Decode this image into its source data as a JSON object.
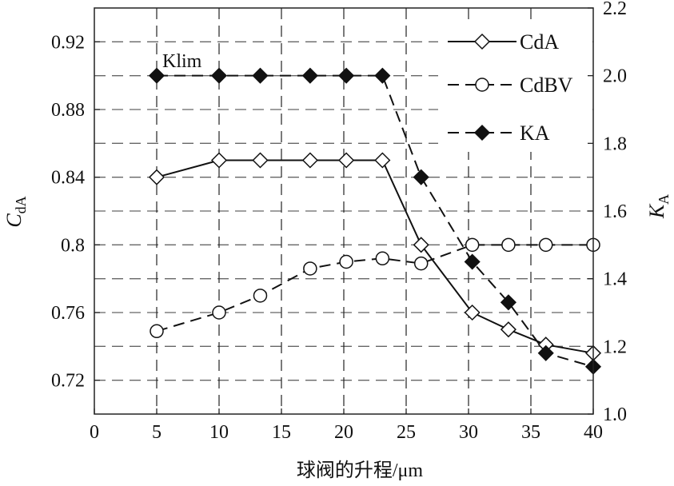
{
  "chart_data": {
    "type": "line",
    "xlabel": "球阀的升程/μm",
    "ylabel_left": {
      "main": "C",
      "sub": "dA"
    },
    "ylabel_right": {
      "main": "K",
      "sub": "A"
    },
    "xlim": [
      0,
      40
    ],
    "ylim_left": [
      0.7,
      0.94
    ],
    "ylim_right": [
      1.0,
      2.2
    ],
    "x_ticks": [
      0,
      5,
      10,
      15,
      20,
      25,
      30,
      35,
      40
    ],
    "x_tick_labels": [
      "0",
      "5",
      "10",
      "15",
      "20",
      "25",
      "30",
      "35",
      "40"
    ],
    "y_left_ticks": [
      0.72,
      0.76,
      0.8,
      0.84,
      0.88,
      0.92
    ],
    "y_left_tick_labels": [
      "0.72",
      "0.76",
      "0.8",
      "0.84",
      "0.88",
      "0.92"
    ],
    "y_right_ticks": [
      1.0,
      1.2,
      1.4,
      1.6,
      1.8,
      2.0,
      2.2
    ],
    "y_right_tick_labels": [
      "1.0",
      "1.2",
      "1.4",
      "1.6",
      "1.8",
      "2.0",
      "2.2"
    ],
    "grid": true,
    "legend_placement": "top-right",
    "annotation": "Klim",
    "x": [
      5,
      10,
      13.3,
      17.3,
      20.2,
      23.1,
      26.2,
      30.3,
      33.2,
      36.2,
      40
    ],
    "series": [
      {
        "name": "CdA",
        "axis": "left",
        "line": "solid",
        "marker": "open-diamond",
        "values": [
          0.84,
          0.85,
          0.85,
          0.85,
          0.85,
          0.85,
          0.8,
          0.76,
          0.75,
          0.741,
          0.736
        ]
      },
      {
        "name": "CdBV",
        "axis": "left",
        "line": "dashed",
        "marker": "open-circle",
        "values": [
          0.749,
          0.76,
          0.77,
          0.786,
          0.79,
          0.792,
          0.789,
          0.8,
          0.8,
          0.8,
          0.8
        ]
      },
      {
        "name": "KA",
        "axis": "right",
        "line": "dashed",
        "marker": "filled-diamond",
        "values": [
          2.0,
          2.0,
          2.0,
          2.0,
          2.0,
          2.0,
          1.7,
          1.45,
          1.33,
          1.18,
          1.14
        ]
      }
    ]
  }
}
